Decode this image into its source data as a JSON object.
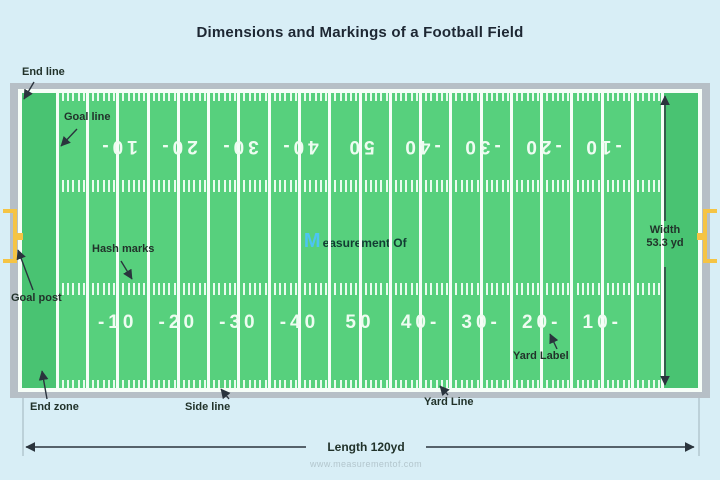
{
  "title": "Dimensions and Markings of a Football Field",
  "watermark": {
    "m": "M",
    "rest": "easurement Of"
  },
  "website": "www.measurementof.com",
  "labels": {
    "end_line": "End line",
    "goal_line": "Goal line",
    "hash_marks": "Hash marks",
    "goal_post": "Goal post",
    "end_zone": "End zone",
    "side_line": "Side line",
    "yard_line": "Yard Line",
    "yard_label": "Yard Label"
  },
  "dimensions": {
    "width_line1": "Width",
    "width_line2": "53.3 yd",
    "length": "Length 120yd"
  },
  "field": {
    "yard_numbers_bottom": [
      "-10",
      "-20",
      "-30",
      "-40",
      "50",
      "40-",
      "30-",
      "20-",
      "10-"
    ],
    "yard_numbers_top": [
      "10-",
      "20-",
      "30-",
      "40-",
      "50",
      "-40",
      "-30",
      "-20",
      "-10"
    ]
  },
  "colors": {
    "background": "#d8eef6",
    "frame_gray": "#b6bfc6",
    "field_green": "#57d07d",
    "end_zone_green": "#49c372",
    "line_white": "#f6fef8",
    "tick_white": "#e9fbee",
    "number_white": "#eefcf1",
    "goal_post_yellow": "#f5c444",
    "label_dark": "#21322a",
    "title_dark": "#1d2733",
    "watermark_blue": "#4cc4f2",
    "watermark_dark": "#123c33",
    "website_gray": "#b3c6cd",
    "arrow_dark": "#2a343d",
    "extension_gray": "#9fb4bc"
  }
}
